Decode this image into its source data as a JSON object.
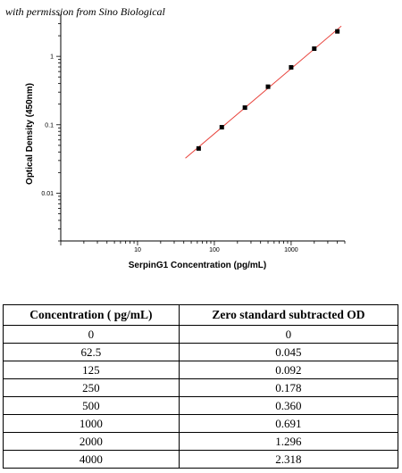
{
  "watermark": "with permission from Sino Biological",
  "chart_data": {
    "type": "scatter",
    "xlabel": "SerpinG1 Concentration (pg/mL)",
    "ylabel": "Optical Density (450nm)",
    "x_scale": "log",
    "y_scale": "log",
    "xlim": [
      1,
      5000
    ],
    "ylim": [
      0.002,
      4
    ],
    "x_ticks": [
      10,
      100,
      1000
    ],
    "x_tick_labels": [
      "10",
      "100",
      "1000"
    ],
    "y_ticks": [
      0.01,
      0.1,
      1
    ],
    "y_tick_labels": [
      "0.01",
      "0.1",
      "1"
    ],
    "grid": false,
    "series": [
      {
        "x": [
          62.5,
          125,
          250,
          500,
          1000,
          2000,
          4000
        ],
        "y": [
          0.045,
          0.092,
          0.178,
          0.36,
          0.691,
          1.296,
          2.318
        ],
        "marker": "square",
        "color": "#000000"
      }
    ],
    "fit_line": {
      "x_range": [
        42,
        4500
      ],
      "color": "#e8413a"
    }
  },
  "table": {
    "headers": [
      "Concentration ( pg/mL)",
      "Zero standard subtracted OD"
    ],
    "rows": [
      [
        "0",
        "0"
      ],
      [
        "62.5",
        "0.045"
      ],
      [
        "125",
        "0.092"
      ],
      [
        "250",
        "0.178"
      ],
      [
        "500",
        "0.360"
      ],
      [
        "1000",
        "0.691"
      ],
      [
        "2000",
        "1.296"
      ],
      [
        "4000",
        "2.318"
      ]
    ]
  }
}
